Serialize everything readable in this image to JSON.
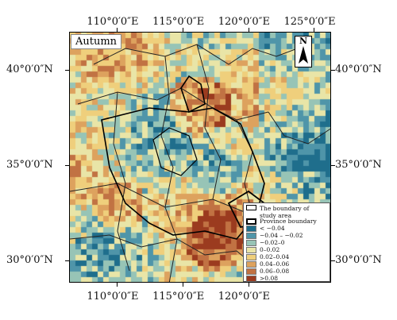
{
  "season_label": "Autumn",
  "north_label": "N",
  "x_ticks": [
    {
      "label": "110°0′0″E",
      "lon": 110
    },
    {
      "label": "115°0′0″E",
      "lon": 115
    },
    {
      "label": "120°0′0″E",
      "lon": 120
    },
    {
      "label": "125°0′0″E",
      "lon": 125
    }
  ],
  "y_ticks": [
    {
      "label": "40°0′0″N",
      "lat": 40
    },
    {
      "label": "35°0′0″N",
      "lat": 35
    },
    {
      "label": "30°0′0″N",
      "lat": 30
    }
  ],
  "legend": {
    "study_area": "The boundary of study area",
    "province": "Province boundary",
    "classes": [
      {
        "label": "< −0.04",
        "color": "#1f6e8c"
      },
      {
        "label": "−0.04 – −0.02",
        "color": "#4f95a9"
      },
      {
        "label": "−0.02–0",
        "color": "#97c4b6"
      },
      {
        "label": "0–0.02",
        "color": "#e9e5a7"
      },
      {
        "label": "0.02–0.04",
        "color": "#efcf7c"
      },
      {
        "label": "0.04–0.06",
        "color": "#dda25e"
      },
      {
        "label": "0.06–0.08",
        "color": "#c17243"
      },
      {
        "label": ">0.08",
        "color": "#9b3b1f"
      }
    ]
  }
}
